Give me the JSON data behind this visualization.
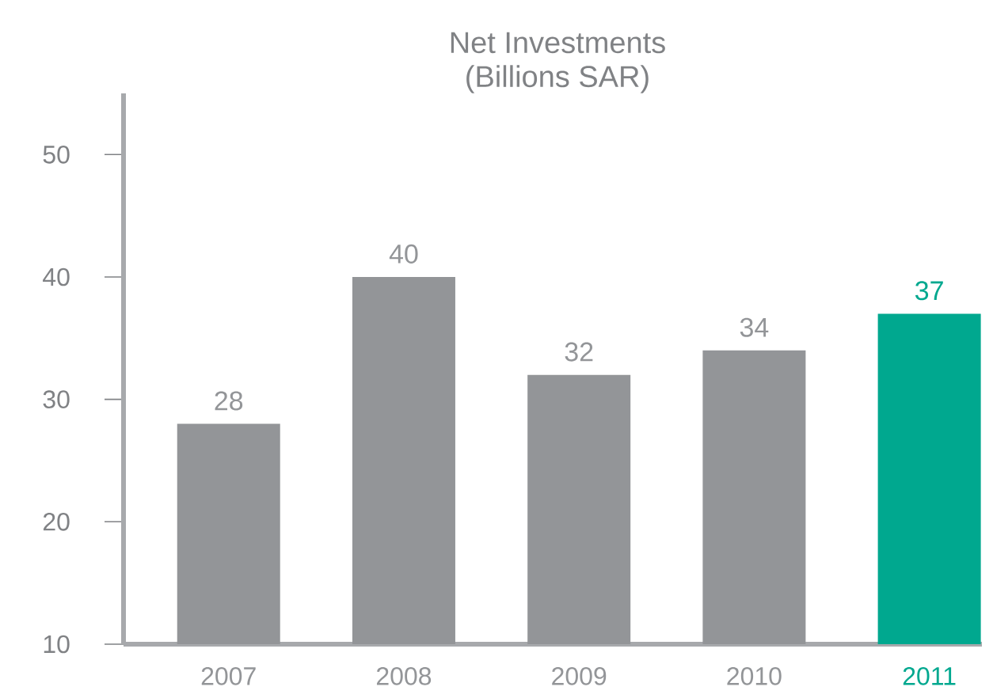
{
  "chart_data": {
    "type": "bar",
    "title": "Net Investments",
    "subtitle": "(Billions SAR)",
    "categories": [
      "2007",
      "2008",
      "2009",
      "2010",
      "2011"
    ],
    "values": [
      28,
      40,
      32,
      34,
      37
    ],
    "colors": [
      "#939598",
      "#939598",
      "#939598",
      "#939598",
      "#00a88f"
    ],
    "ylim": [
      10,
      55
    ],
    "yticks": [
      10,
      20,
      30,
      40,
      50
    ],
    "data_labels": true
  }
}
